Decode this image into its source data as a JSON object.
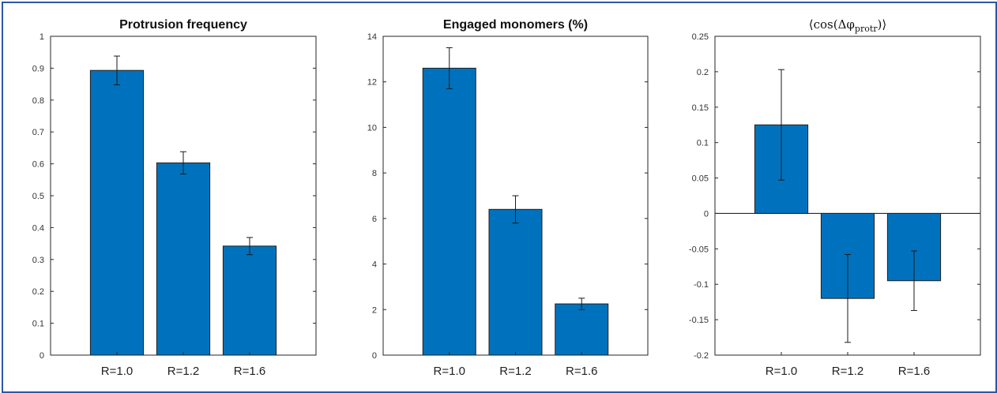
{
  "colors": {
    "bar": "#0072bd",
    "axis": "#262626",
    "frame": "#2b57a8"
  },
  "chart_data": [
    {
      "type": "bar",
      "title": "Protrusion frequency",
      "categories": [
        "R=1.0",
        "R=1.2",
        "R=1.6"
      ],
      "values": [
        0.893,
        0.603,
        0.342
      ],
      "error": [
        0.045,
        0.035,
        0.027
      ],
      "ylim": [
        0,
        1
      ],
      "yticks": [
        0,
        0.1,
        0.2,
        0.3,
        0.4,
        0.5,
        0.6,
        0.7,
        0.8,
        0.9,
        1
      ],
      "ytick_labels": [
        "0",
        "0.1",
        "0.2",
        "0.3",
        "0.4",
        "0.5",
        "0.6",
        "0.7",
        "0.8",
        "0.9",
        "1"
      ],
      "grid": false
    },
    {
      "type": "bar",
      "title": "Engaged monomers (%)",
      "categories": [
        "R=1.0",
        "R=1.2",
        "R=1.6"
      ],
      "values": [
        12.6,
        6.4,
        2.25
      ],
      "error": [
        0.9,
        0.6,
        0.25
      ],
      "ylim": [
        0,
        14
      ],
      "yticks": [
        0,
        2,
        4,
        6,
        8,
        10,
        12,
        14
      ],
      "ytick_labels": [
        "0",
        "2",
        "4",
        "6",
        "8",
        "10",
        "12",
        "14"
      ],
      "grid": false
    },
    {
      "type": "bar",
      "title": "⟨cos(Δφprotr)⟩",
      "title_main": "⟨cos(Δφ",
      "title_sub": "protr",
      "title_end": ")⟩",
      "categories": [
        "R=1.0",
        "R=1.2",
        "R=1.6"
      ],
      "values": [
        0.125,
        -0.12,
        -0.095
      ],
      "error": [
        0.078,
        0.062,
        0.042
      ],
      "ylim": [
        -0.2,
        0.25
      ],
      "yticks": [
        -0.2,
        -0.15,
        -0.1,
        -0.05,
        0,
        0.05,
        0.1,
        0.15,
        0.2,
        0.25
      ],
      "ytick_labels": [
        "-0.2",
        "-0.15",
        "-0.1",
        "-0.05",
        "0",
        "0.05",
        "0.1",
        "0.15",
        "0.2",
        "0.25"
      ],
      "baseline": 0,
      "grid": false
    }
  ]
}
